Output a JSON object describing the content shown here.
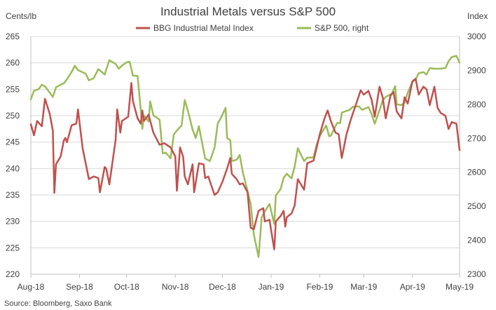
{
  "chart_data": {
    "type": "line",
    "title": "Industrial Metals versus S&P 500",
    "ylabel_left": "Cents/lb",
    "ylabel_right": "Index",
    "ylim_left": [
      220,
      265
    ],
    "ylim_right": [
      2300,
      3000
    ],
    "yticks_left": [
      "265",
      "260",
      "255",
      "250",
      "245",
      "240",
      "235",
      "230",
      "225",
      "220"
    ],
    "yticks_right": [
      "3000",
      "2900",
      "2800",
      "2700",
      "2600",
      "2500",
      "2400",
      "2300"
    ],
    "xlim": [
      "2018-08-01",
      "2019-05-01"
    ],
    "xticks": [
      {
        "label": "Aug-18",
        "date": "2018-08-01"
      },
      {
        "label": "Sep-18",
        "date": "2018-09-01"
      },
      {
        "label": "Oct-18",
        "date": "2018-10-01"
      },
      {
        "label": "Nov-18",
        "date": "2018-11-01"
      },
      {
        "label": "Dec-18",
        "date": "2018-12-01"
      },
      {
        "label": "Jan-19",
        "date": "2019-01-01"
      },
      {
        "label": "Feb-19",
        "date": "2019-02-01"
      },
      {
        "label": "Mar-19",
        "date": "2019-03-01"
      },
      {
        "label": "Apr-19",
        "date": "2019-04-01"
      },
      {
        "label": "May-19",
        "date": "2019-05-01"
      }
    ],
    "grid": "horizontal",
    "legend_position": "top-center",
    "source": "Source: Bloomberg, Saxo Bank",
    "series": [
      {
        "name": "BBG Industrial Metal Index",
        "axis": "left",
        "color": "#c0504d",
        "points": [
          [
            "2018-08-01",
            248.4
          ],
          [
            "2018-08-03",
            246.3
          ],
          [
            "2018-08-05",
            249.0
          ],
          [
            "2018-08-08",
            248.0
          ],
          [
            "2018-08-10",
            253.2
          ],
          [
            "2018-08-13",
            250.4
          ],
          [
            "2018-08-15",
            247.2
          ],
          [
            "2018-08-16",
            235.4
          ],
          [
            "2018-08-17",
            240.8
          ],
          [
            "2018-08-20",
            242.3
          ],
          [
            "2018-08-22",
            245.3
          ],
          [
            "2018-08-23",
            245.8
          ],
          [
            "2018-08-24",
            245.0
          ],
          [
            "2018-08-27",
            248.2
          ],
          [
            "2018-08-30",
            248.5
          ],
          [
            "2018-08-31",
            251.2
          ],
          [
            "2018-09-03",
            243.8
          ],
          [
            "2018-09-07",
            238.0
          ],
          [
            "2018-09-10",
            238.5
          ],
          [
            "2018-09-13",
            238.2
          ],
          [
            "2018-09-14",
            235.5
          ],
          [
            "2018-09-17",
            240.3
          ],
          [
            "2018-09-18",
            240.0
          ],
          [
            "2018-09-20",
            237.0
          ],
          [
            "2018-09-24",
            245.5
          ],
          [
            "2018-09-25",
            251.2
          ],
          [
            "2018-09-27",
            246.8
          ],
          [
            "2018-09-28",
            249.0
          ],
          [
            "2018-10-02",
            249.8
          ],
          [
            "2018-10-04",
            256.2
          ],
          [
            "2018-10-05",
            252.8
          ],
          [
            "2018-10-08",
            249.5
          ],
          [
            "2018-10-10",
            248.5
          ],
          [
            "2018-10-11",
            251.0
          ],
          [
            "2018-10-12",
            249.0
          ],
          [
            "2018-10-15",
            250.2
          ],
          [
            "2018-10-18",
            246.8
          ],
          [
            "2018-10-22",
            244.5
          ],
          [
            "2018-10-25",
            244.8
          ],
          [
            "2018-10-29",
            244.0
          ],
          [
            "2018-11-01",
            242.3
          ],
          [
            "2018-11-02",
            235.8
          ],
          [
            "2018-11-04",
            244.0
          ],
          [
            "2018-11-06",
            242.2
          ],
          [
            "2018-11-07",
            238.5
          ],
          [
            "2018-11-09",
            237.0
          ],
          [
            "2018-11-12",
            240.8
          ],
          [
            "2018-11-13",
            235.5
          ],
          [
            "2018-11-16",
            241.0
          ],
          [
            "2018-11-19",
            240.8
          ],
          [
            "2018-11-20",
            238.2
          ],
          [
            "2018-11-22",
            238.5
          ],
          [
            "2018-11-26",
            235.0
          ],
          [
            "2018-11-28",
            235.5
          ],
          [
            "2018-12-01",
            237.5
          ],
          [
            "2018-12-04",
            240.0
          ],
          [
            "2018-12-06",
            242.0
          ],
          [
            "2018-12-07",
            239.0
          ],
          [
            "2018-12-10",
            238.0
          ],
          [
            "2018-12-12",
            237.0
          ],
          [
            "2018-12-14",
            237.2
          ],
          [
            "2018-12-17",
            235.5
          ],
          [
            "2018-12-19",
            228.8
          ],
          [
            "2018-12-21",
            228.5
          ],
          [
            "2018-12-24",
            232.0
          ],
          [
            "2018-12-27",
            232.5
          ],
          [
            "2018-12-28",
            230.0
          ],
          [
            "2018-12-31",
            230.3
          ],
          [
            "2019-01-02",
            226.5
          ],
          [
            "2019-01-03",
            224.7
          ],
          [
            "2019-01-04",
            230.0
          ],
          [
            "2019-01-07",
            231.0
          ],
          [
            "2019-01-09",
            232.0
          ],
          [
            "2019-01-10",
            229.0
          ],
          [
            "2019-01-11",
            230.8
          ],
          [
            "2019-01-14",
            231.5
          ],
          [
            "2019-01-16",
            233.0
          ],
          [
            "2019-01-18",
            238.0
          ],
          [
            "2019-01-22",
            236.0
          ],
          [
            "2019-01-24",
            241.0
          ],
          [
            "2019-01-28",
            241.5
          ],
          [
            "2019-01-30",
            244.0
          ],
          [
            "2019-02-01",
            246.5
          ],
          [
            "2019-02-04",
            249.5
          ],
          [
            "2019-02-06",
            251.0
          ],
          [
            "2019-02-08",
            249.0
          ],
          [
            "2019-02-11",
            246.8
          ],
          [
            "2019-02-13",
            246.5
          ],
          [
            "2019-02-15",
            242.0
          ],
          [
            "2019-02-18",
            246.5
          ],
          [
            "2019-02-21",
            249.5
          ],
          [
            "2019-02-25",
            253.0
          ],
          [
            "2019-02-27",
            254.8
          ],
          [
            "2019-03-01",
            254.0
          ],
          [
            "2019-03-04",
            254.7
          ],
          [
            "2019-03-06",
            253.0
          ],
          [
            "2019-03-08",
            249.8
          ],
          [
            "2019-03-11",
            255.5
          ],
          [
            "2019-03-13",
            253.5
          ],
          [
            "2019-03-15",
            249.5
          ],
          [
            "2019-03-18",
            253.8
          ],
          [
            "2019-03-20",
            254.5
          ],
          [
            "2019-03-22",
            250.8
          ],
          [
            "2019-03-25",
            249.5
          ],
          [
            "2019-03-27",
            253.5
          ],
          [
            "2019-03-29",
            252.3
          ],
          [
            "2019-04-01",
            256.5
          ],
          [
            "2019-04-03",
            257.0
          ],
          [
            "2019-04-05",
            254.0
          ],
          [
            "2019-04-08",
            255.5
          ],
          [
            "2019-04-10",
            255.0
          ],
          [
            "2019-04-12",
            252.0
          ],
          [
            "2019-04-15",
            255.5
          ],
          [
            "2019-04-17",
            251.5
          ],
          [
            "2019-04-19",
            250.5
          ],
          [
            "2019-04-22",
            250.0
          ],
          [
            "2019-04-24",
            247.5
          ],
          [
            "2019-04-26",
            248.8
          ],
          [
            "2019-04-29",
            248.5
          ],
          [
            "2019-05-01",
            243.5
          ]
        ]
      },
      {
        "name": "S&P 500, right",
        "axis": "right",
        "color": "#9bbb59",
        "points": [
          [
            "2018-08-01",
            2815
          ],
          [
            "2018-08-03",
            2840
          ],
          [
            "2018-08-06",
            2845
          ],
          [
            "2018-08-08",
            2858
          ],
          [
            "2018-08-10",
            2853
          ],
          [
            "2018-08-13",
            2835
          ],
          [
            "2018-08-15",
            2822
          ],
          [
            "2018-08-17",
            2850
          ],
          [
            "2018-08-20",
            2858
          ],
          [
            "2018-08-22",
            2862
          ],
          [
            "2018-08-24",
            2874
          ],
          [
            "2018-08-27",
            2896
          ],
          [
            "2018-08-29",
            2914
          ],
          [
            "2018-08-31",
            2901
          ],
          [
            "2018-09-05",
            2890
          ],
          [
            "2018-09-07",
            2871
          ],
          [
            "2018-09-10",
            2877
          ],
          [
            "2018-09-13",
            2904
          ],
          [
            "2018-09-17",
            2888
          ],
          [
            "2018-09-20",
            2930
          ],
          [
            "2018-09-24",
            2919
          ],
          [
            "2018-09-26",
            2905
          ],
          [
            "2018-09-28",
            2914
          ],
          [
            "2018-10-01",
            2924
          ],
          [
            "2018-10-03",
            2925
          ],
          [
            "2018-10-05",
            2885
          ],
          [
            "2018-10-08",
            2884
          ],
          [
            "2018-10-10",
            2785
          ],
          [
            "2018-10-11",
            2728
          ],
          [
            "2018-10-12",
            2767
          ],
          [
            "2018-10-15",
            2750
          ],
          [
            "2018-10-16",
            2809
          ],
          [
            "2018-10-18",
            2768
          ],
          [
            "2018-10-22",
            2755
          ],
          [
            "2018-10-24",
            2656
          ],
          [
            "2018-10-26",
            2658
          ],
          [
            "2018-10-29",
            2641
          ],
          [
            "2018-10-31",
            2711
          ],
          [
            "2018-11-02",
            2723
          ],
          [
            "2018-11-05",
            2738
          ],
          [
            "2018-11-07",
            2813
          ],
          [
            "2018-11-09",
            2781
          ],
          [
            "2018-11-12",
            2726
          ],
          [
            "2018-11-14",
            2701
          ],
          [
            "2018-11-16",
            2736
          ],
          [
            "2018-11-20",
            2641
          ],
          [
            "2018-11-23",
            2633
          ],
          [
            "2018-11-26",
            2673
          ],
          [
            "2018-11-28",
            2744
          ],
          [
            "2018-11-30",
            2760
          ],
          [
            "2018-12-03",
            2790
          ],
          [
            "2018-12-04",
            2700
          ],
          [
            "2018-12-06",
            2695
          ],
          [
            "2018-12-07",
            2633
          ],
          [
            "2018-12-10",
            2637
          ],
          [
            "2018-12-12",
            2651
          ],
          [
            "2018-12-14",
            2600
          ],
          [
            "2018-12-17",
            2545
          ],
          [
            "2018-12-19",
            2507
          ],
          [
            "2018-12-21",
            2417
          ],
          [
            "2018-12-24",
            2351
          ],
          [
            "2018-12-26",
            2467
          ],
          [
            "2018-12-28",
            2485
          ],
          [
            "2018-12-31",
            2507
          ],
          [
            "2019-01-03",
            2448
          ],
          [
            "2019-01-04",
            2532
          ],
          [
            "2019-01-07",
            2550
          ],
          [
            "2019-01-09",
            2584
          ],
          [
            "2019-01-11",
            2596
          ],
          [
            "2019-01-14",
            2582
          ],
          [
            "2019-01-16",
            2617
          ],
          [
            "2019-01-18",
            2671
          ],
          [
            "2019-01-22",
            2633
          ],
          [
            "2019-01-24",
            2643
          ],
          [
            "2019-01-28",
            2644
          ],
          [
            "2019-01-30",
            2681
          ],
          [
            "2019-02-01",
            2707
          ],
          [
            "2019-02-05",
            2738
          ],
          [
            "2019-02-07",
            2706
          ],
          [
            "2019-02-08",
            2708
          ],
          [
            "2019-02-12",
            2745
          ],
          [
            "2019-02-14",
            2745
          ],
          [
            "2019-02-15",
            2776
          ],
          [
            "2019-02-20",
            2784
          ],
          [
            "2019-02-22",
            2793
          ],
          [
            "2019-02-26",
            2794
          ],
          [
            "2019-02-28",
            2784
          ],
          [
            "2019-03-04",
            2792
          ],
          [
            "2019-03-06",
            2771
          ],
          [
            "2019-03-08",
            2743
          ],
          [
            "2019-03-11",
            2783
          ],
          [
            "2019-03-13",
            2811
          ],
          [
            "2019-03-15",
            2822
          ],
          [
            "2019-03-19",
            2832
          ],
          [
            "2019-03-21",
            2854
          ],
          [
            "2019-03-22",
            2800
          ],
          [
            "2019-03-25",
            2798
          ],
          [
            "2019-03-27",
            2805
          ],
          [
            "2019-03-29",
            2834
          ],
          [
            "2019-04-01",
            2867
          ],
          [
            "2019-04-03",
            2873
          ],
          [
            "2019-04-05",
            2892
          ],
          [
            "2019-04-08",
            2895
          ],
          [
            "2019-04-10",
            2888
          ],
          [
            "2019-04-12",
            2907
          ],
          [
            "2019-04-15",
            2905
          ],
          [
            "2019-04-18",
            2905
          ],
          [
            "2019-04-22",
            2907
          ],
          [
            "2019-04-24",
            2927
          ],
          [
            "2019-04-26",
            2939
          ],
          [
            "2019-04-29",
            2943
          ],
          [
            "2019-05-01",
            2923
          ]
        ]
      }
    ]
  }
}
